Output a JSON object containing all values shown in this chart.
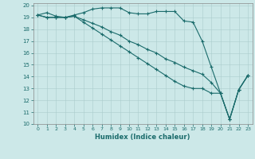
{
  "xlabel": "Humidex (Indice chaleur)",
  "ylabel": "",
  "xlim": [
    -0.5,
    23.5
  ],
  "ylim": [
    10,
    20.2
  ],
  "xticks": [
    0,
    1,
    2,
    3,
    4,
    5,
    6,
    7,
    8,
    9,
    10,
    11,
    12,
    13,
    14,
    15,
    16,
    17,
    18,
    19,
    20,
    21,
    22,
    23
  ],
  "yticks": [
    10,
    11,
    12,
    13,
    14,
    15,
    16,
    17,
    18,
    19,
    20
  ],
  "bg_color": "#cce8e8",
  "grid_color": "#aacccc",
  "line_color": "#1a6b6b",
  "line1_x": [
    0,
    1,
    2,
    3,
    4,
    5,
    6,
    7,
    8,
    9,
    10,
    11,
    12,
    13,
    14,
    15,
    16,
    17,
    18,
    19,
    20,
    21,
    22,
    23
  ],
  "line1_y": [
    19.2,
    19.4,
    19.1,
    19.0,
    19.2,
    19.4,
    19.7,
    19.8,
    19.8,
    19.8,
    19.4,
    19.3,
    19.3,
    19.5,
    19.5,
    19.5,
    18.7,
    18.6,
    17.0,
    14.8,
    12.6,
    10.4,
    12.9,
    14.1
  ],
  "line2_x": [
    0,
    1,
    2,
    3,
    4,
    5,
    6,
    7,
    8,
    9,
    10,
    11,
    12,
    13,
    14,
    15,
    16,
    17,
    18,
    19,
    20,
    21,
    22,
    23
  ],
  "line2_y": [
    19.2,
    19.0,
    19.0,
    19.0,
    19.1,
    18.8,
    18.5,
    18.2,
    17.8,
    17.5,
    17.0,
    16.7,
    16.3,
    16.0,
    15.5,
    15.2,
    14.8,
    14.5,
    14.2,
    13.5,
    12.6,
    10.4,
    12.9,
    14.1
  ],
  "line3_x": [
    0,
    1,
    2,
    3,
    4,
    5,
    6,
    7,
    8,
    9,
    10,
    11,
    12,
    13,
    14,
    15,
    16,
    17,
    18,
    19,
    20,
    21,
    22,
    23
  ],
  "line3_y": [
    19.2,
    19.0,
    19.0,
    19.0,
    19.1,
    18.6,
    18.1,
    17.6,
    17.1,
    16.6,
    16.1,
    15.6,
    15.1,
    14.6,
    14.1,
    13.6,
    13.2,
    13.0,
    13.0,
    12.6,
    12.6,
    10.4,
    12.9,
    14.1
  ]
}
